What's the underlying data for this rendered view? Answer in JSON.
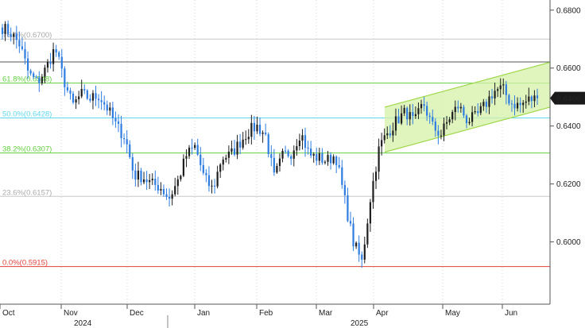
{
  "chart_data": {
    "type": "candlestick",
    "title": "",
    "ylim": [
      0.5785,
      0.6835
    ],
    "y_ticks": [
      "0.6800",
      "0.6600",
      "0.6400",
      "0.6200",
      "0.6000"
    ],
    "x_month_labels": [
      "Oct",
      "Nov",
      "Dec",
      "Jan",
      "Feb",
      "Mar",
      "Apr",
      "May",
      "Jun"
    ],
    "x_year_labels": [
      "2024",
      "2025"
    ],
    "last_price": "0.6496",
    "last_price_value": 0.6496,
    "colors": {
      "up": "#1f1f1f",
      "down": "#2f7de1",
      "channel_fill": "#d6f0a8",
      "channel_line": "#9ed84a"
    },
    "horizontal_lines": [
      {
        "value": 0.67,
        "color": "#c8c8c8",
        "label": "76.4%(0.6700)",
        "label_color": "#aaaaaa"
      },
      {
        "value": 0.6621,
        "color": "#555555",
        "label": "",
        "label_color": "#555555"
      },
      {
        "value": 0.6548,
        "color": "#63cf3e",
        "label": "61.8%(0.6548)",
        "label_color": "#63cf3e"
      },
      {
        "value": 0.6428,
        "color": "#5fd6ee",
        "label": "50.0%(0.6428)",
        "label_color": "#5fd6ee"
      },
      {
        "value": 0.6307,
        "color": "#63cf3e",
        "label": "38.2%(0.6307)",
        "label_color": "#63cf3e"
      },
      {
        "value": 0.6157,
        "color": "#c8c8c8",
        "label": "23.6%(0.6157)",
        "label_color": "#aaaaaa"
      },
      {
        "value": 0.5915,
        "color": "#e0413a",
        "label": "0.0%(0.5915)",
        "label_color": "#e0413a"
      }
    ],
    "channel": {
      "start": "Apr",
      "end": "late Jun",
      "upper": [
        0.6465,
        0.662
      ],
      "lower": [
        0.631,
        0.6465
      ]
    },
    "anchors": [
      0.674,
      0.672,
      0.668,
      0.658,
      0.655,
      0.66,
      0.667,
      0.656,
      0.647,
      0.651,
      0.6495,
      0.6505,
      0.646,
      0.64,
      0.636,
      0.623,
      0.6225,
      0.62,
      0.619,
      0.615,
      0.621,
      0.63,
      0.633,
      0.622,
      0.618,
      0.629,
      0.63,
      0.634,
      0.638,
      0.64,
      0.637,
      0.622,
      0.63,
      0.631,
      0.638,
      0.63,
      0.629,
      0.628,
      0.63,
      0.615,
      0.6,
      0.593,
      0.616,
      0.633,
      0.638,
      0.642,
      0.645,
      0.641,
      0.648,
      0.64,
      0.637,
      0.643,
      0.647,
      0.642,
      0.643,
      0.647,
      0.652,
      0.653,
      0.648,
      0.647,
      0.649,
      0.6496
    ]
  }
}
